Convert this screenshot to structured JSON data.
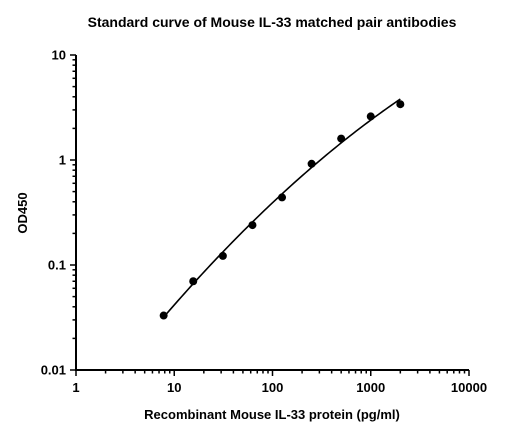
{
  "chart_data": {
    "type": "scatter",
    "title": "Standard curve of Mouse IL-33 matched pair antibodies",
    "xlabel": "Recombinant Mouse IL-33 protein (pg/ml)",
    "ylabel": "OD450",
    "x_scale": "log",
    "y_scale": "log",
    "xlim": [
      1,
      10000
    ],
    "ylim": [
      0.01,
      10
    ],
    "x_ticks": [
      1,
      10,
      100,
      1000,
      10000
    ],
    "x_tick_labels": [
      "1",
      "10",
      "100",
      "1000",
      "10000"
    ],
    "y_ticks": [
      0.01,
      0.1,
      1,
      10
    ],
    "y_tick_labels": [
      "0.01",
      "0.1",
      "1",
      "10"
    ],
    "grid": false,
    "legend": "none",
    "series": [
      {
        "x": [
          7.8,
          15.6,
          31.25,
          62.5,
          125,
          250,
          500,
          1000,
          2000
        ],
        "y": [
          0.033,
          0.07,
          0.122,
          0.24,
          0.44,
          0.92,
          1.6,
          2.6,
          3.4
        ],
        "marker": "circle",
        "color": "#000000",
        "fit_curve": true
      }
    ]
  }
}
